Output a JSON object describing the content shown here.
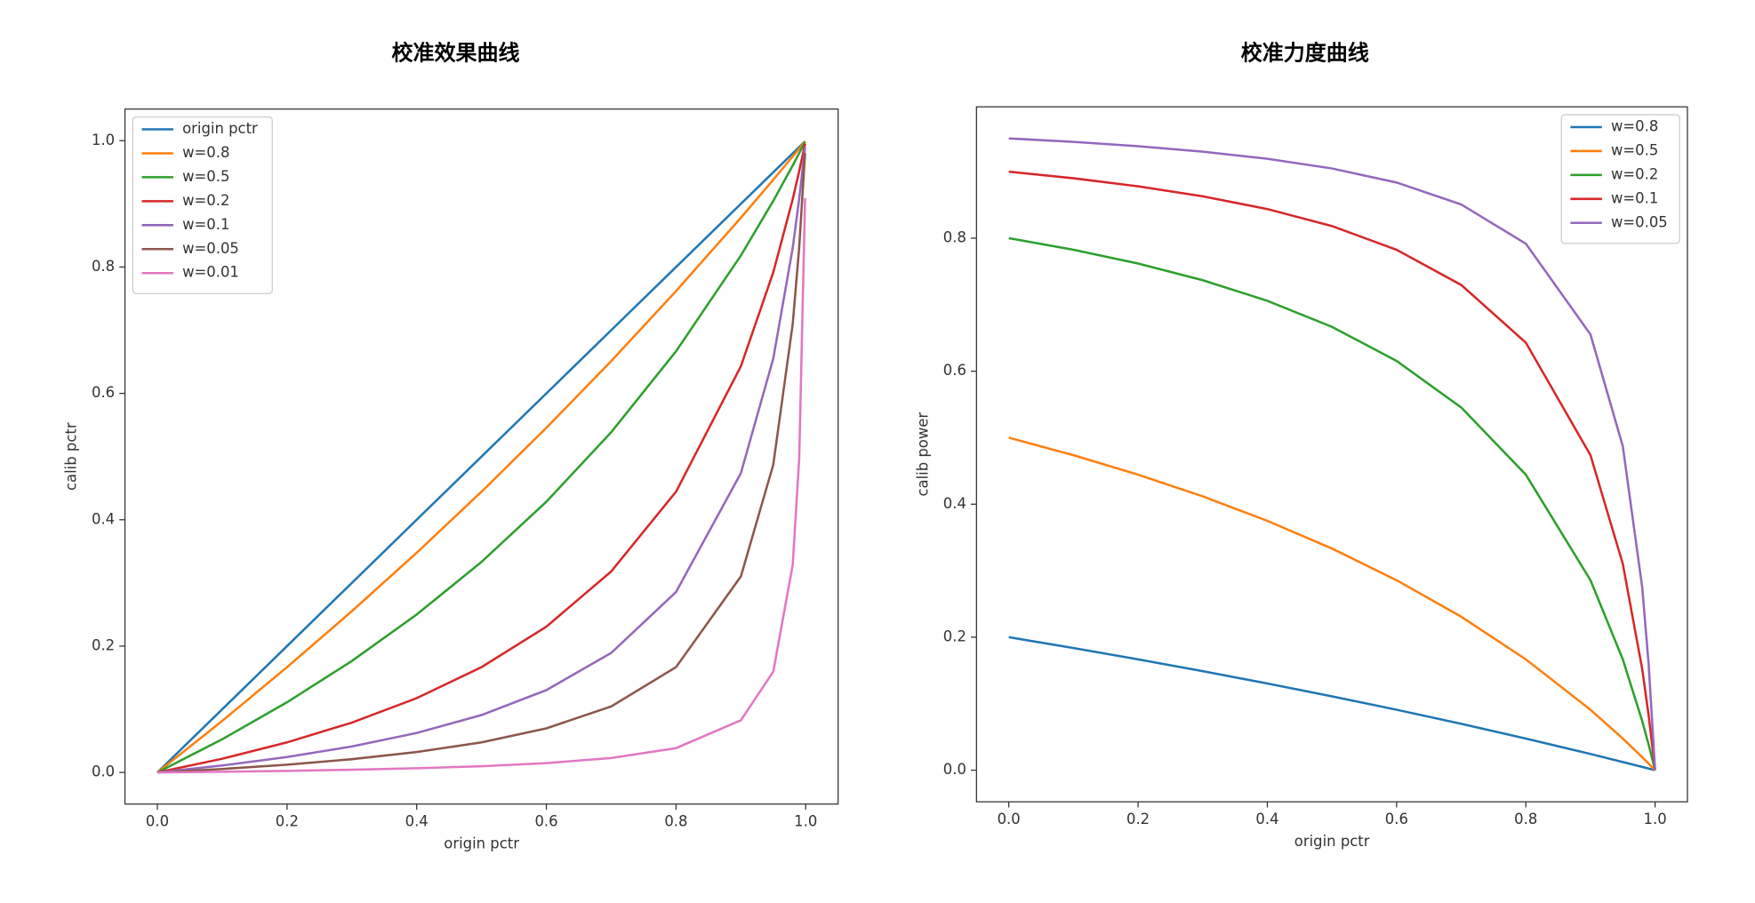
{
  "chart_data": [
    {
      "type": "line",
      "title": "校准效果曲线",
      "xlabel": "origin pctr",
      "ylabel": "calib pctr",
      "x": [
        0,
        0.1,
        0.2,
        0.3,
        0.4,
        0.5,
        0.6,
        0.7,
        0.8,
        0.9,
        0.95,
        0.98,
        0.99,
        0.999
      ],
      "series": [
        {
          "name": "origin pctr",
          "color": "#1f77b4",
          "values": [
            0,
            0.1,
            0.2,
            0.3,
            0.4,
            0.5,
            0.6,
            0.7,
            0.8,
            0.9,
            0.95,
            0.98,
            0.99,
            0.999
          ]
        },
        {
          "name": "w=0.8",
          "color": "#ff7f0e",
          "values": [
            0,
            0.0816,
            0.1667,
            0.2553,
            0.3478,
            0.4444,
            0.5455,
            0.6512,
            0.7619,
            0.878,
            0.9383,
            0.9751,
            0.9875,
            0.9988
          ]
        },
        {
          "name": "w=0.5",
          "color": "#2ca02c",
          "values": [
            0,
            0.0526,
            0.1111,
            0.1765,
            0.25,
            0.3333,
            0.4286,
            0.5385,
            0.6667,
            0.8182,
            0.9048,
            0.9608,
            0.9802,
            0.998
          ]
        },
        {
          "name": "w=0.2",
          "color": "#d62728",
          "values": [
            0,
            0.0217,
            0.0476,
            0.0789,
            0.1176,
            0.1667,
            0.2308,
            0.3182,
            0.4444,
            0.6429,
            0.7917,
            0.9074,
            0.9519,
            0.995
          ]
        },
        {
          "name": "w=0.1",
          "color": "#9467bd",
          "values": [
            0,
            0.011,
            0.0244,
            0.0411,
            0.0625,
            0.0909,
            0.1304,
            0.1892,
            0.2857,
            0.4737,
            0.6552,
            0.8305,
            0.9083,
            0.9901
          ]
        },
        {
          "name": "w=0.05",
          "color": "#8c564b",
          "values": [
            0,
            0.0055,
            0.0123,
            0.021,
            0.0323,
            0.0476,
            0.0698,
            0.1045,
            0.1667,
            0.3103,
            0.4872,
            0.7101,
            0.8319,
            0.9804
          ]
        },
        {
          "name": "w=0.01",
          "color": "#e377c2",
          "values": [
            0,
            0.0011,
            0.0025,
            0.0043,
            0.0066,
            0.0099,
            0.0148,
            0.0228,
            0.0385,
            0.0826,
            0.1597,
            0.3289,
            0.4975,
            0.909
          ]
        }
      ],
      "xlim": [
        -0.05,
        1.05
      ],
      "ylim": [
        -0.05,
        1.05
      ],
      "xticks": [
        {
          "value": 0,
          "label": "0.0"
        },
        {
          "value": 0.2,
          "label": "0.2"
        },
        {
          "value": 0.4,
          "label": "0.4"
        },
        {
          "value": 0.6,
          "label": "0.6"
        },
        {
          "value": 0.8,
          "label": "0.8"
        },
        {
          "value": 1,
          "label": "1.0"
        }
      ],
      "yticks": [
        {
          "value": 0,
          "label": "0.0"
        },
        {
          "value": 0.2,
          "label": "0.2"
        },
        {
          "value": 0.4,
          "label": "0.4"
        },
        {
          "value": 0.6,
          "label": "0.6"
        },
        {
          "value": 0.8,
          "label": "0.8"
        },
        {
          "value": 1,
          "label": "1.0"
        }
      ],
      "legend": "upper left",
      "grid": false
    },
    {
      "type": "line",
      "title": "校准力度曲线",
      "xlabel": "origin pctr",
      "ylabel": "calib power",
      "x": [
        0,
        0.1,
        0.2,
        0.3,
        0.4,
        0.5,
        0.6,
        0.7,
        0.8,
        0.9,
        0.95,
        0.98,
        0.99,
        1
      ],
      "series": [
        {
          "name": "w=0.8",
          "color": "#1f77b4",
          "values": [
            0.2,
            0.1837,
            0.1667,
            0.1489,
            0.1304,
            0.1111,
            0.0909,
            0.0698,
            0.0476,
            0.0244,
            0.0123,
            0.005,
            0.0025,
            0
          ]
        },
        {
          "name": "w=0.5",
          "color": "#ff7f0e",
          "values": [
            0.5,
            0.4737,
            0.4444,
            0.4118,
            0.375,
            0.3333,
            0.2857,
            0.2308,
            0.1667,
            0.0909,
            0.0476,
            0.0196,
            0.0099,
            0
          ]
        },
        {
          "name": "w=0.2",
          "color": "#2ca02c",
          "values": [
            0.8,
            0.7826,
            0.7619,
            0.7368,
            0.7059,
            0.6667,
            0.6154,
            0.5455,
            0.4444,
            0.2857,
            0.1667,
            0.0741,
            0.0385,
            0
          ]
        },
        {
          "name": "w=0.1",
          "color": "#d62728",
          "values": [
            0.9,
            0.8901,
            0.878,
            0.863,
            0.8438,
            0.8182,
            0.7826,
            0.7297,
            0.6429,
            0.4737,
            0.3103,
            0.1525,
            0.0826,
            0
          ]
        },
        {
          "name": "w=0.05",
          "color": "#9467bd",
          "values": [
            0.95,
            0.9448,
            0.9383,
            0.9301,
            0.9194,
            0.9048,
            0.8837,
            0.8507,
            0.7917,
            0.6552,
            0.4872,
            0.2754,
            0.1597,
            0
          ]
        }
      ],
      "xlim": [
        -0.05,
        1.05
      ],
      "ylim": [
        -0.0475,
        0.9975
      ],
      "xticks": [
        {
          "value": 0,
          "label": "0.0"
        },
        {
          "value": 0.2,
          "label": "0.2"
        },
        {
          "value": 0.4,
          "label": "0.4"
        },
        {
          "value": 0.6,
          "label": "0.6"
        },
        {
          "value": 0.8,
          "label": "0.8"
        },
        {
          "value": 1,
          "label": "1.0"
        }
      ],
      "yticks": [
        {
          "value": 0,
          "label": "0.0"
        },
        {
          "value": 0.2,
          "label": "0.2"
        },
        {
          "value": 0.4,
          "label": "0.4"
        },
        {
          "value": 0.6,
          "label": "0.6"
        },
        {
          "value": 0.8,
          "label": "0.8"
        }
      ],
      "legend": "upper right",
      "grid": false
    }
  ]
}
